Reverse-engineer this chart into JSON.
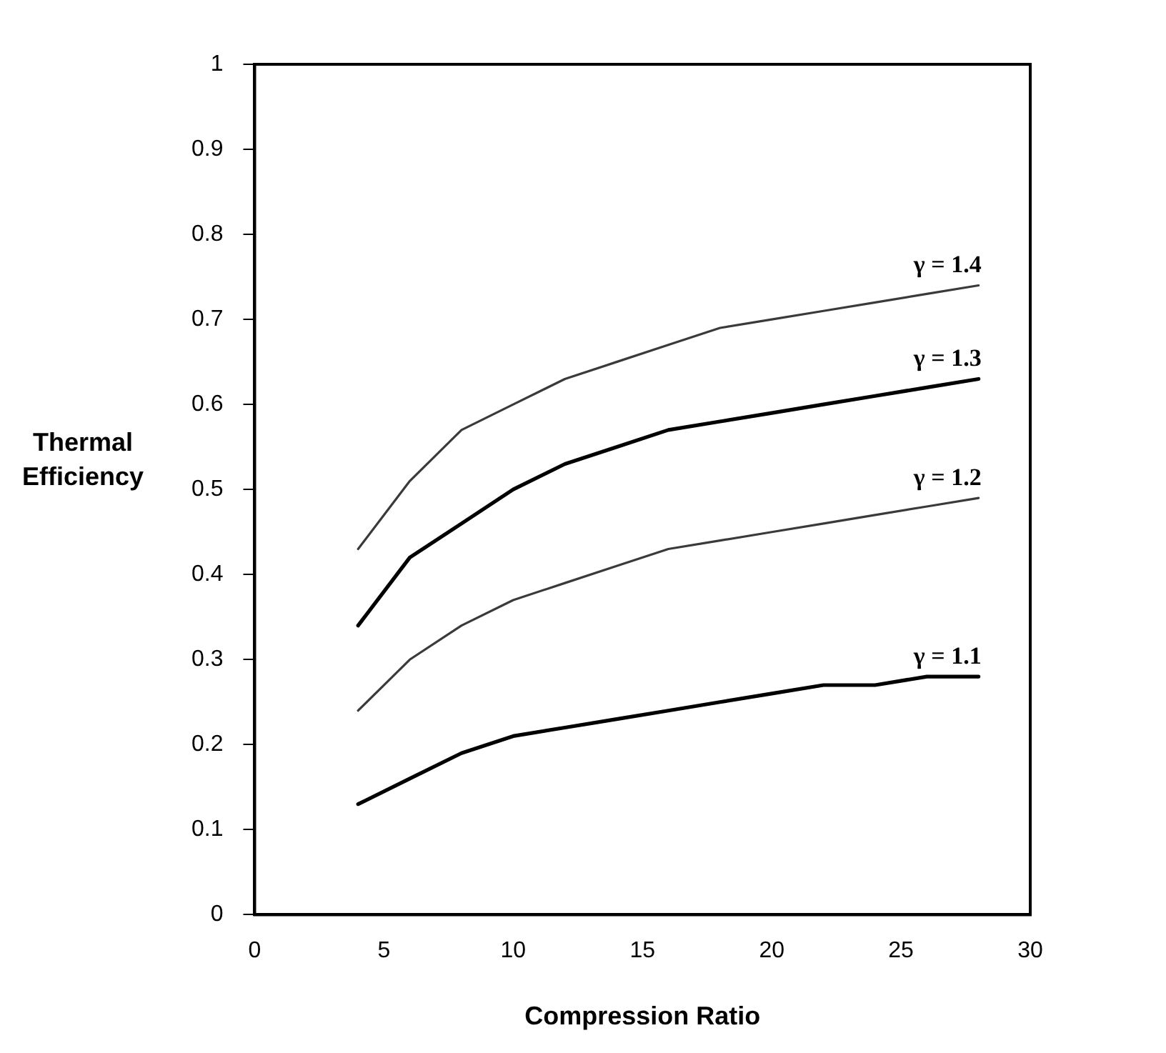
{
  "chart_data": {
    "type": "line",
    "xlabel": "Compression Ratio",
    "ylabel": "Thermal Efficiency",
    "x": [
      4,
      6,
      8,
      10,
      12,
      14,
      16,
      18,
      20,
      22,
      24,
      26,
      28
    ],
    "series": [
      {
        "name": "γ = 1.4",
        "color": "#3a3a3a",
        "values": [
          0.43,
          0.51,
          0.57,
          0.6,
          0.63,
          0.65,
          0.67,
          0.69,
          0.7,
          0.71,
          0.72,
          0.73,
          0.74
        ]
      },
      {
        "name": "γ = 1.3",
        "color": "#000000",
        "values": [
          0.34,
          0.42,
          0.46,
          0.5,
          0.53,
          0.55,
          0.57,
          0.58,
          0.59,
          0.6,
          0.61,
          0.62,
          0.63
        ]
      },
      {
        "name": "γ = 1.2",
        "color": "#3a3a3a",
        "values": [
          0.24,
          0.3,
          0.34,
          0.37,
          0.39,
          0.41,
          0.43,
          0.44,
          0.45,
          0.46,
          0.47,
          0.48,
          0.49
        ]
      },
      {
        "name": "γ = 1.1",
        "color": "#000000",
        "values": [
          0.13,
          0.16,
          0.19,
          0.21,
          0.22,
          0.23,
          0.24,
          0.25,
          0.26,
          0.27,
          0.27,
          0.28,
          0.28
        ]
      }
    ],
    "xlim": [
      0,
      30
    ],
    "xticks": [
      0,
      5,
      10,
      15,
      20,
      25,
      30
    ],
    "ylim": [
      0,
      1
    ],
    "yticks": [
      0,
      0.1,
      0.2,
      0.3,
      0.4,
      0.5,
      0.6,
      0.7,
      0.8,
      0.9,
      1
    ],
    "grid": false,
    "legend": false,
    "marker": "none",
    "line_style": "solid"
  }
}
